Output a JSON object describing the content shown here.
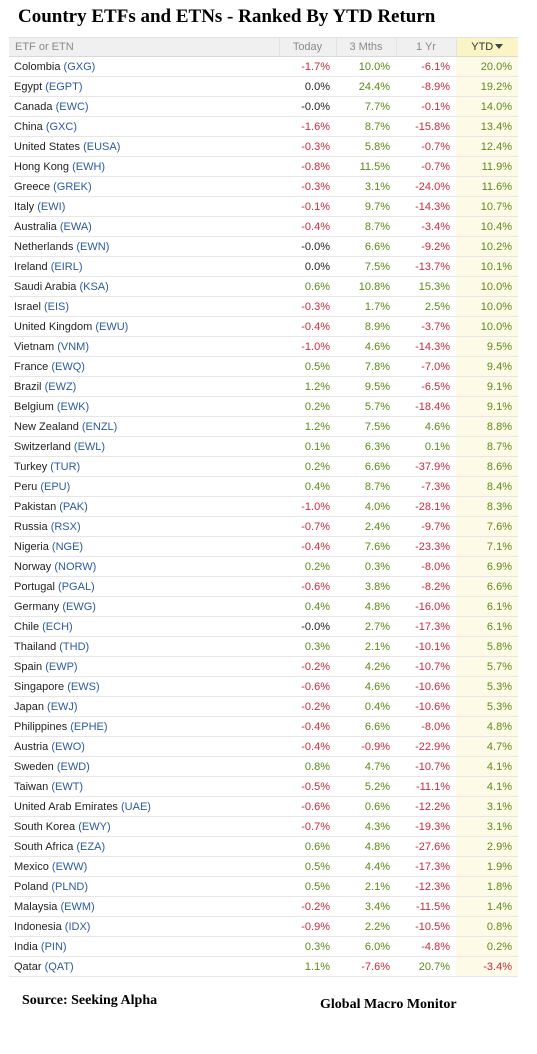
{
  "title": "Country ETFs and ETNs - Ranked By YTD Return",
  "columns": [
    "ETF or ETN",
    "Today",
    "3 Mths",
    "1 Yr",
    "YTD"
  ],
  "rows": [
    {
      "country": "Colombia",
      "ticker": "(GXG)",
      "today": "-1.7%",
      "m3": "10.0%",
      "y1": "-6.1%",
      "ytd": "20.0%"
    },
    {
      "country": "Egypt",
      "ticker": "(EGPT)",
      "today": "0.0%",
      "m3": "24.4%",
      "y1": "-8.9%",
      "ytd": "19.2%"
    },
    {
      "country": "Canada",
      "ticker": "(EWC)",
      "today": "-0.0%",
      "m3": "7.7%",
      "y1": "-0.1%",
      "ytd": "14.0%"
    },
    {
      "country": "China",
      "ticker": "(GXC)",
      "today": "-1.6%",
      "m3": "8.7%",
      "y1": "-15.8%",
      "ytd": "13.4%"
    },
    {
      "country": "United States",
      "ticker": "(EUSA)",
      "today": "-0.3%",
      "m3": "5.8%",
      "y1": "-0.7%",
      "ytd": "12.4%"
    },
    {
      "country": "Hong Kong",
      "ticker": "(EWH)",
      "today": "-0.8%",
      "m3": "11.5%",
      "y1": "-0.7%",
      "ytd": "11.9%"
    },
    {
      "country": "Greece",
      "ticker": "(GREK)",
      "today": "-0.3%",
      "m3": "3.1%",
      "y1": "-24.0%",
      "ytd": "11.6%"
    },
    {
      "country": "Italy",
      "ticker": "(EWI)",
      "today": "-0.1%",
      "m3": "9.7%",
      "y1": "-14.3%",
      "ytd": "10.7%"
    },
    {
      "country": "Australia",
      "ticker": "(EWA)",
      "today": "-0.4%",
      "m3": "8.7%",
      "y1": "-3.4%",
      "ytd": "10.4%"
    },
    {
      "country": "Netherlands",
      "ticker": "(EWN)",
      "today": "-0.0%",
      "m3": "6.6%",
      "y1": "-9.2%",
      "ytd": "10.2%"
    },
    {
      "country": "Ireland",
      "ticker": "(EIRL)",
      "today": "0.0%",
      "m3": "7.5%",
      "y1": "-13.7%",
      "ytd": "10.1%"
    },
    {
      "country": "Saudi Arabia",
      "ticker": "(KSA)",
      "today": "0.6%",
      "m3": "10.8%",
      "y1": "15.3%",
      "ytd": "10.0%"
    },
    {
      "country": "Israel",
      "ticker": "(EIS)",
      "today": "-0.3%",
      "m3": "1.7%",
      "y1": "2.5%",
      "ytd": "10.0%"
    },
    {
      "country": "United Kingdom",
      "ticker": "(EWU)",
      "today": "-0.4%",
      "m3": "8.9%",
      "y1": "-3.7%",
      "ytd": "10.0%"
    },
    {
      "country": "Vietnam",
      "ticker": "(VNM)",
      "today": "-1.0%",
      "m3": "4.6%",
      "y1": "-14.3%",
      "ytd": "9.5%"
    },
    {
      "country": "France",
      "ticker": "(EWQ)",
      "today": "0.5%",
      "m3": "7.8%",
      "y1": "-7.0%",
      "ytd": "9.4%"
    },
    {
      "country": "Brazil",
      "ticker": "(EWZ)",
      "today": "1.2%",
      "m3": "9.5%",
      "y1": "-6.5%",
      "ytd": "9.1%"
    },
    {
      "country": "Belgium",
      "ticker": "(EWK)",
      "today": "0.2%",
      "m3": "5.7%",
      "y1": "-18.4%",
      "ytd": "9.1%"
    },
    {
      "country": "New Zealand",
      "ticker": "(ENZL)",
      "today": "1.2%",
      "m3": "7.5%",
      "y1": "4.6%",
      "ytd": "8.8%"
    },
    {
      "country": "Switzerland",
      "ticker": "(EWL)",
      "today": "0.1%",
      "m3": "6.3%",
      "y1": "0.1%",
      "ytd": "8.7%"
    },
    {
      "country": "Turkey",
      "ticker": "(TUR)",
      "today": "0.2%",
      "m3": "6.6%",
      "y1": "-37.9%",
      "ytd": "8.6%"
    },
    {
      "country": "Peru",
      "ticker": "(EPU)",
      "today": "0.4%",
      "m3": "8.7%",
      "y1": "-7.3%",
      "ytd": "8.4%"
    },
    {
      "country": "Pakistan",
      "ticker": "(PAK)",
      "today": "-1.0%",
      "m3": "4.0%",
      "y1": "-28.1%",
      "ytd": "8.3%"
    },
    {
      "country": "Russia",
      "ticker": "(RSX)",
      "today": "-0.7%",
      "m3": "2.4%",
      "y1": "-9.7%",
      "ytd": "7.6%"
    },
    {
      "country": "Nigeria",
      "ticker": "(NGE)",
      "today": "-0.4%",
      "m3": "7.6%",
      "y1": "-23.3%",
      "ytd": "7.1%"
    },
    {
      "country": "Norway",
      "ticker": "(NORW)",
      "today": "0.2%",
      "m3": "0.3%",
      "y1": "-8.0%",
      "ytd": "6.9%"
    },
    {
      "country": "Portugal",
      "ticker": "(PGAL)",
      "today": "-0.6%",
      "m3": "3.8%",
      "y1": "-8.2%",
      "ytd": "6.6%"
    },
    {
      "country": "Germany",
      "ticker": "(EWG)",
      "today": "0.4%",
      "m3": "4.8%",
      "y1": "-16.0%",
      "ytd": "6.1%"
    },
    {
      "country": "Chile",
      "ticker": "(ECH)",
      "today": "-0.0%",
      "m3": "2.7%",
      "y1": "-17.3%",
      "ytd": "6.1%"
    },
    {
      "country": "Thailand",
      "ticker": "(THD)",
      "today": "0.3%",
      "m3": "2.1%",
      "y1": "-10.1%",
      "ytd": "5.8%"
    },
    {
      "country": "Spain",
      "ticker": "(EWP)",
      "today": "-0.2%",
      "m3": "4.2%",
      "y1": "-10.7%",
      "ytd": "5.7%"
    },
    {
      "country": "Singapore",
      "ticker": "(EWS)",
      "today": "-0.6%",
      "m3": "4.6%",
      "y1": "-10.6%",
      "ytd": "5.3%"
    },
    {
      "country": "Japan",
      "ticker": "(EWJ)",
      "today": "-0.2%",
      "m3": "0.4%",
      "y1": "-10.6%",
      "ytd": "5.3%"
    },
    {
      "country": "Philippines",
      "ticker": "(EPHE)",
      "today": "-0.4%",
      "m3": "6.6%",
      "y1": "-8.0%",
      "ytd": "4.8%"
    },
    {
      "country": "Austria",
      "ticker": "(EWO)",
      "today": "-0.4%",
      "m3": "-0.9%",
      "y1": "-22.9%",
      "ytd": "4.7%"
    },
    {
      "country": "Sweden",
      "ticker": "(EWD)",
      "today": "0.8%",
      "m3": "4.7%",
      "y1": "-10.7%",
      "ytd": "4.1%"
    },
    {
      "country": "Taiwan",
      "ticker": "(EWT)",
      "today": "-0.5%",
      "m3": "5.2%",
      "y1": "-11.1%",
      "ytd": "4.1%"
    },
    {
      "country": "United Arab Emirates",
      "ticker": "(UAE)",
      "today": "-0.6%",
      "m3": "0.6%",
      "y1": "-12.2%",
      "ytd": "3.1%"
    },
    {
      "country": "South Korea",
      "ticker": "(EWY)",
      "today": "-0.7%",
      "m3": "4.3%",
      "y1": "-19.3%",
      "ytd": "3.1%"
    },
    {
      "country": "South Africa",
      "ticker": "(EZA)",
      "today": "0.6%",
      "m3": "4.8%",
      "y1": "-27.6%",
      "ytd": "2.9%"
    },
    {
      "country": "Mexico",
      "ticker": "(EWW)",
      "today": "0.5%",
      "m3": "4.4%",
      "y1": "-17.3%",
      "ytd": "1.9%"
    },
    {
      "country": "Poland",
      "ticker": "(PLND)",
      "today": "0.5%",
      "m3": "2.1%",
      "y1": "-12.3%",
      "ytd": "1.8%"
    },
    {
      "country": "Malaysia",
      "ticker": "(EWM)",
      "today": "-0.2%",
      "m3": "3.4%",
      "y1": "-11.5%",
      "ytd": "1.4%"
    },
    {
      "country": "Indonesia",
      "ticker": "(IDX)",
      "today": "-0.9%",
      "m3": "2.2%",
      "y1": "-10.5%",
      "ytd": "0.8%"
    },
    {
      "country": "India",
      "ticker": "(PIN)",
      "today": "0.3%",
      "m3": "6.0%",
      "y1": "-4.8%",
      "ytd": "0.2%"
    },
    {
      "country": "Qatar",
      "ticker": "(QAT)",
      "today": "1.1%",
      "m3": "-7.6%",
      "y1": "20.7%",
      "ytd": "-3.4%"
    }
  ],
  "footer": {
    "source": "Source:  Seeking Alpha",
    "brand": "Global Macro Monitor"
  },
  "colors": {
    "positive": "#5a8a16",
    "negative": "#c62b3a",
    "ticker": "#2b5aa0",
    "ytd_header_bg": "#fbf4c7"
  }
}
